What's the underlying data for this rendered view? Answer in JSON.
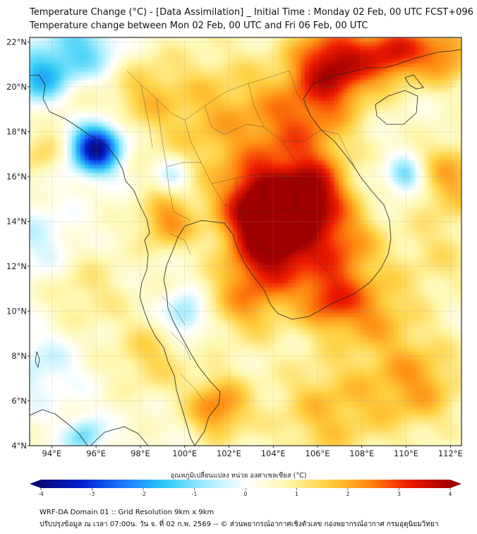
{
  "header": {
    "title_line1": "Temperature Change (°C) - [Data Assimilation] _ Initial Time : Monday 02 Feb, 00 UTC FCST+096",
    "title_line2": "Temperature change between Mon 02 Feb, 00 UTC and Fri 06 Feb, 00 UTC"
  },
  "map": {
    "lon_labels": [
      "94°E",
      "96°E",
      "98°E",
      "100°E",
      "102°E",
      "104°E",
      "106°E",
      "108°E",
      "110°E",
      "112°E"
    ],
    "lat_labels": [
      "22°N",
      "20°N",
      "18°N",
      "16°N",
      "14°N",
      "12°N",
      "10°N",
      "8°N",
      "6°N",
      "4°N"
    ],
    "lon_range": [
      93,
      112.5
    ],
    "lat_range": [
      4,
      22.2
    ],
    "hotspots": [
      {
        "lon": 104.2,
        "lat": 13.0,
        "value": 3.3,
        "spread": 1.4
      },
      {
        "lon": 103.4,
        "lat": 14.8,
        "value": 3.0,
        "spread": 1.3
      },
      {
        "lon": 105.8,
        "lat": 15.2,
        "value": 2.8,
        "spread": 1.1
      },
      {
        "lon": 106.8,
        "lat": 21.0,
        "value": 3.3,
        "spread": 1.3
      },
      {
        "lon": 105.3,
        "lat": 18.2,
        "value": 1.8,
        "spread": 1.6
      },
      {
        "lon": 109.5,
        "lat": 21.6,
        "value": 2.6,
        "spread": 1.0
      },
      {
        "lon": 111.8,
        "lat": 21.5,
        "value": 2.0,
        "spread": 1.0
      },
      {
        "lon": 101.5,
        "lat": 18.5,
        "value": 1.4,
        "spread": 2.2
      },
      {
        "lon": 99.2,
        "lat": 14.0,
        "value": 1.8,
        "spread": 0.9
      },
      {
        "lon": 101.5,
        "lat": 5.7,
        "value": 2.1,
        "spread": 1.0
      },
      {
        "lon": 102.8,
        "lat": 10.5,
        "value": 1.6,
        "spread": 1.3
      },
      {
        "lon": 107.2,
        "lat": 13.0,
        "value": 1.8,
        "spread": 1.2
      },
      {
        "lon": 108.5,
        "lat": 10.0,
        "value": 1.5,
        "spread": 1.3
      },
      {
        "lon": 106.5,
        "lat": 10.5,
        "value": 2.0,
        "spread": 1.0
      },
      {
        "lon": 110.5,
        "lat": 6.8,
        "value": 1.7,
        "spread": 1.5
      },
      {
        "lon": 106.5,
        "lat": 5.5,
        "value": 1.4,
        "spread": 1.8
      },
      {
        "lon": 112.0,
        "lat": 16.0,
        "value": 1.6,
        "spread": 1.2
      },
      {
        "lon": 94.5,
        "lat": 19.5,
        "value": 1.0,
        "spread": 1.2
      },
      {
        "lon": 98.0,
        "lat": 19.8,
        "value": 1.0,
        "spread": 1.2
      },
      {
        "lon": 98.5,
        "lat": 8.0,
        "value": 1.1,
        "spread": 1.2
      },
      {
        "lon": 95.5,
        "lat": 11.0,
        "value": 0.8,
        "spread": 1.4
      },
      {
        "lon": 111.5,
        "lat": 12.5,
        "value": 0.8,
        "spread": 1.4
      },
      {
        "lon": 93.5,
        "lat": 17.0,
        "value": 1.0,
        "spread": 0.7
      },
      {
        "lon": 96.0,
        "lat": 17.3,
        "value": -4.2,
        "spread": 0.8
      },
      {
        "lon": 93.6,
        "lat": 20.3,
        "value": -2.4,
        "spread": 1.0
      },
      {
        "lon": 95.5,
        "lat": 21.6,
        "value": -1.6,
        "spread": 1.2
      },
      {
        "lon": 110.0,
        "lat": 16.0,
        "value": -1.8,
        "spread": 0.6
      },
      {
        "lon": 100.0,
        "lat": 9.8,
        "value": -1.6,
        "spread": 0.7
      },
      {
        "lon": 99.5,
        "lat": 16.0,
        "value": -1.2,
        "spread": 0.6
      },
      {
        "lon": 95.5,
        "lat": 4.4,
        "value": -1.5,
        "spread": 0.6
      },
      {
        "lon": 93.5,
        "lat": 13.0,
        "value": -0.8,
        "spread": 1.2
      },
      {
        "lon": 93.5,
        "lat": 7.5,
        "value": -0.8,
        "spread": 1.2
      }
    ]
  },
  "colorbar": {
    "title": "อุณหภูมิเปลี่ยนแปลง หน่วย องศาเซลเซียส (°C)",
    "min": -4,
    "max": 4,
    "tick_labels": [
      "-4",
      "-3",
      "-2",
      "-1",
      "0",
      "1",
      "2",
      "3",
      "4"
    ],
    "stops": [
      "#0a0a78",
      "#0020d0",
      "#1e78ff",
      "#28c8f5",
      "#a0ecff",
      "#ffffff",
      "#fff8b0",
      "#ffd040",
      "#ff8a10",
      "#ee1a00",
      "#a00000"
    ]
  },
  "footer": {
    "line1": "WRF-DA Domain 01 :: Grid Resolution 9km x 9km",
    "line2": "ปรับปรุงข้อมูล ณ เวลา 07:00น. วัน จ. ที่ 02 ก.พ. 2569 -- © ส่วนพยากรณ์อากาศเชิงตัวเลข กองพยากรณ์อากาศ กรมอุตุนิยมวิทยา"
  }
}
